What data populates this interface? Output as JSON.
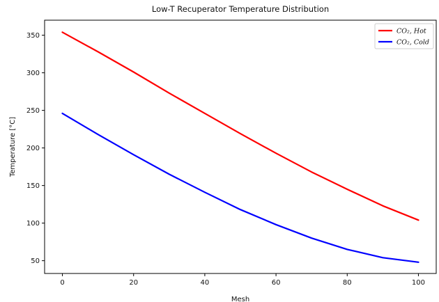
{
  "chart_data": {
    "type": "line",
    "title": "Low-T Recuperator Temperature Distribution",
    "xlabel": "Mesh",
    "ylabel": "Temperature [°C]",
    "xlim": [
      -5,
      105
    ],
    "ylim": [
      33,
      370
    ],
    "xticks": [
      0,
      20,
      40,
      60,
      80,
      100
    ],
    "yticks": [
      50,
      100,
      150,
      200,
      250,
      300,
      350
    ],
    "grid": false,
    "legend_position": "top-right",
    "x": [
      0,
      10,
      20,
      30,
      40,
      50,
      60,
      70,
      80,
      90,
      100
    ],
    "series": [
      {
        "name": "CO₂, Hot",
        "color": "#ff0000",
        "values": [
          354,
          328,
          301,
          273,
          246,
          219,
          193,
          168,
          145,
          123,
          104
        ]
      },
      {
        "name": "CO₂, Cold",
        "color": "#0000ff",
        "values": [
          246,
          218,
          191,
          165,
          141,
          118,
          98,
          80,
          65,
          54,
          48
        ]
      }
    ]
  }
}
